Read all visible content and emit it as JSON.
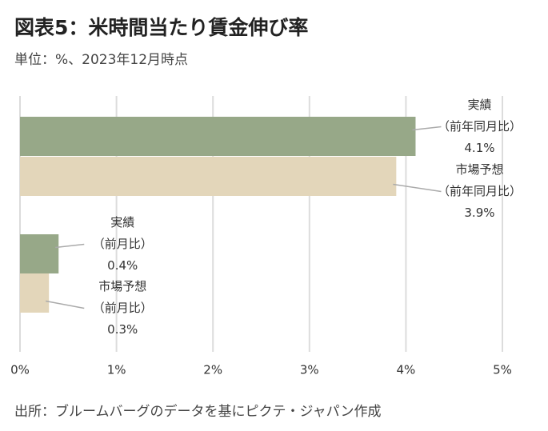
{
  "chart_data": {
    "type": "hbar",
    "title": "図表5：米時間当たり賃金伸び率",
    "subtitle": "単位：%、2023年12月時点",
    "source": "出所：ブルームバーグのデータを基にピクテ・ジャパン作成",
    "categories": [
      "実績",
      "市場予想",
      "実績",
      "市場予想"
    ],
    "category_notes": [
      "（前年同月比）",
      "（前年同月比）",
      "（前月比）",
      "（前月比）"
    ],
    "values": [
      4.1,
      3.9,
      0.4,
      0.3
    ],
    "value_labels": [
      "4.1%",
      "3.9%",
      "0.4%",
      "0.3%"
    ],
    "colors": [
      "#97a888",
      "#e3d6ba",
      "#97a888",
      "#e3d6ba"
    ],
    "xlim": [
      0,
      5
    ],
    "xticks": [
      {
        "value": 0,
        "label": "0%"
      },
      {
        "value": 1,
        "label": "1%"
      },
      {
        "value": 2,
        "label": "2%"
      },
      {
        "value": 3,
        "label": "3%"
      },
      {
        "value": 4,
        "label": "4%"
      },
      {
        "value": 5,
        "label": "5%"
      }
    ],
    "grid": true
  }
}
